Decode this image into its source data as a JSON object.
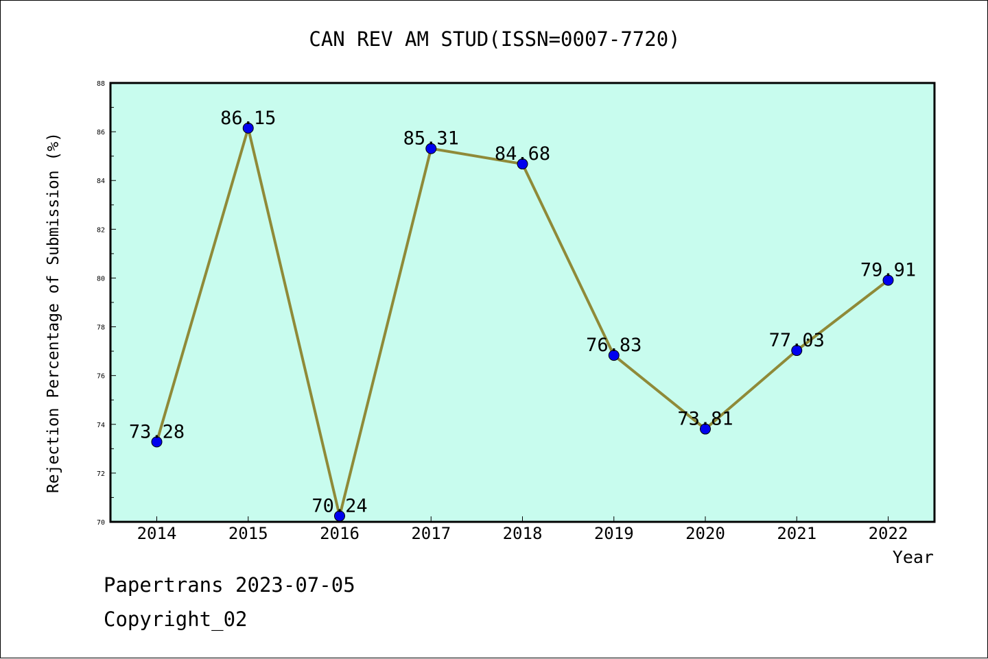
{
  "chart_data": {
    "type": "line",
    "title": "CAN REV AM STUD(ISSN=0007-7720)",
    "xlabel": "Year",
    "ylabel": "Rejection Percentage of Submission (%)",
    "categories": [
      "2014",
      "2015",
      "2016",
      "2017",
      "2018",
      "2019",
      "2020",
      "2021",
      "2022"
    ],
    "values": [
      73.28,
      86.15,
      70.24,
      85.31,
      84.68,
      76.83,
      73.81,
      77.03,
      79.91
    ],
    "data_labels": [
      "73.28",
      "86.15",
      "70.24",
      "85.31",
      "84.68",
      "76.83",
      "73.81",
      "77.03",
      "79.91"
    ],
    "ylim": [
      70,
      88
    ],
    "yticks": [
      70,
      72,
      74,
      76,
      78,
      80,
      82,
      84,
      86,
      88
    ],
    "grid": false,
    "colors": {
      "plot_background": "#c8fcee",
      "line": "#8f8a38",
      "marker": "#0000ee"
    }
  },
  "footer": {
    "line1": "Papertrans 2023-07-05",
    "line2": "Copyright_02"
  }
}
